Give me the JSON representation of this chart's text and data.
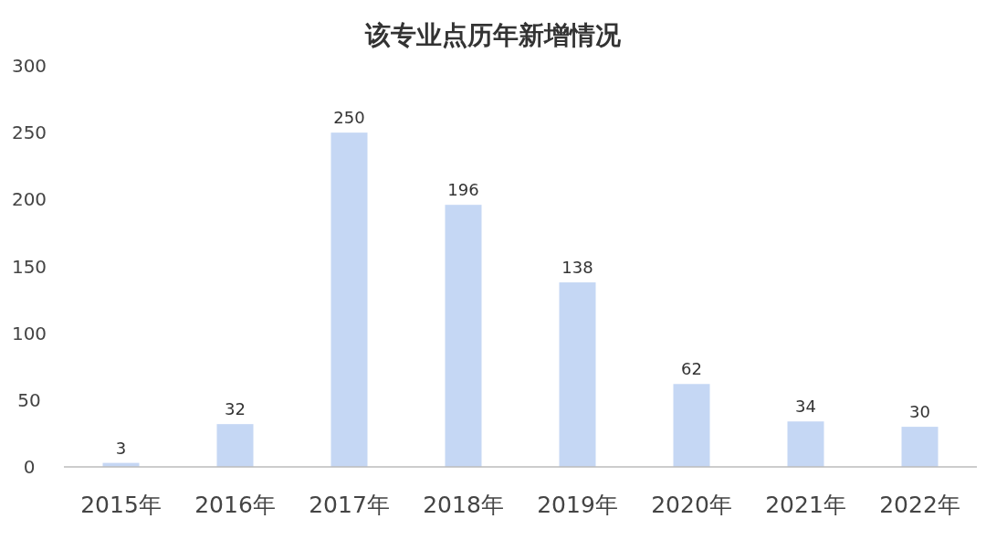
{
  "chart_data": {
    "type": "bar",
    "title": "该专业点历年新增情况",
    "categories": [
      "2015年",
      "2016年",
      "2017年",
      "2018年",
      "2019年",
      "2020年",
      "2021年",
      "2022年"
    ],
    "values": [
      3,
      32,
      250,
      196,
      138,
      62,
      34,
      30
    ],
    "color": "#c5d7f4",
    "ylim": [
      0,
      300
    ],
    "yticks": [
      0,
      50,
      100,
      150,
      200,
      250,
      300
    ],
    "grid": false,
    "data_labels": true
  }
}
